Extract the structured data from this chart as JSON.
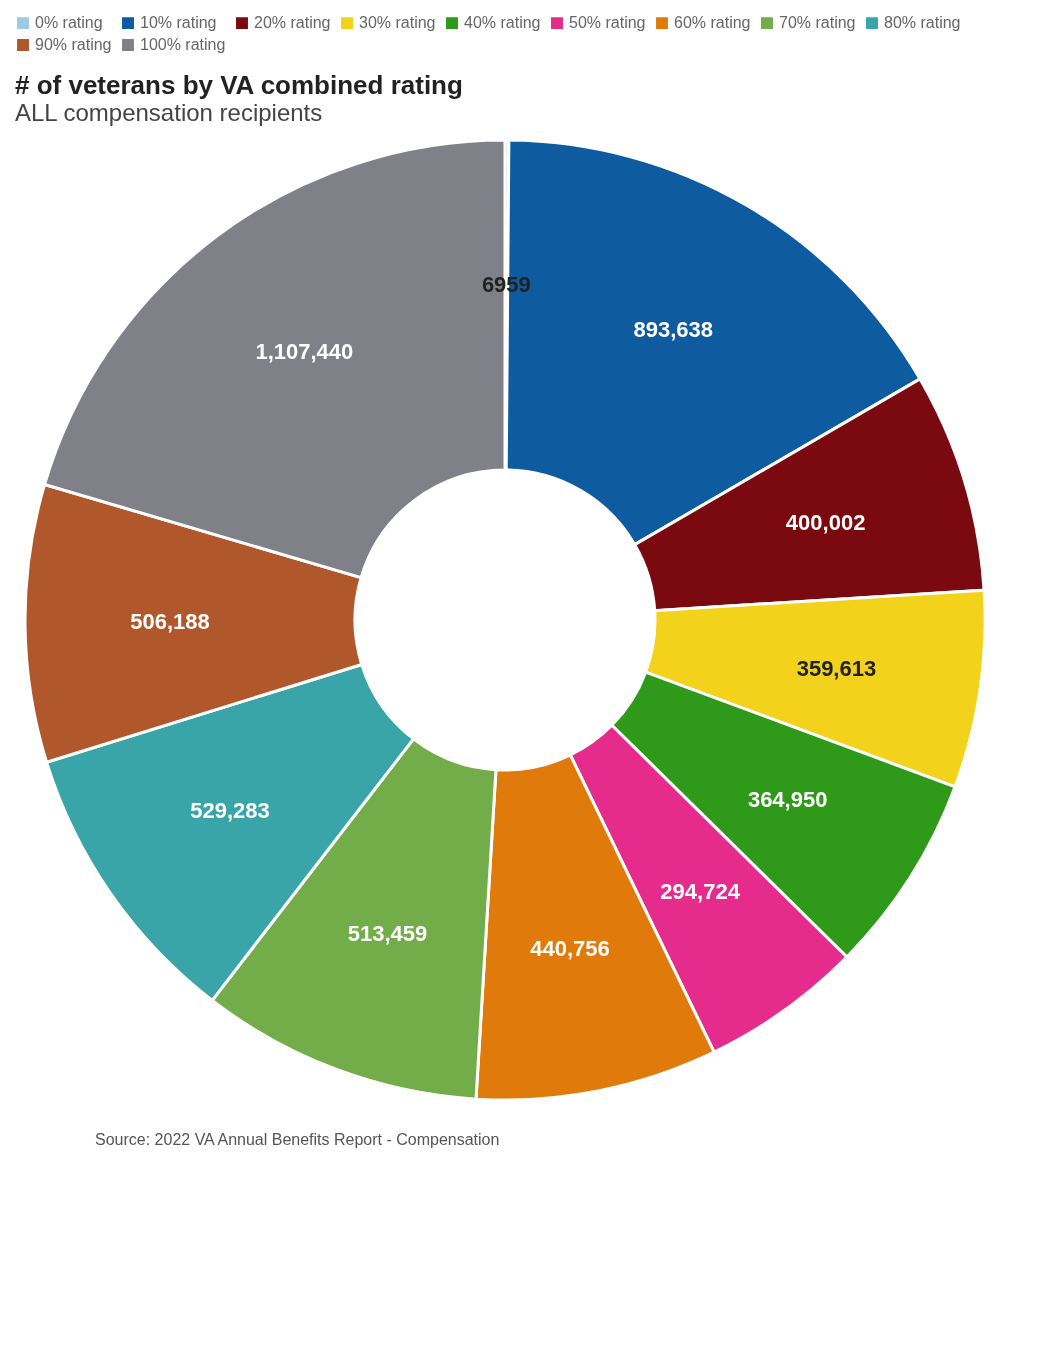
{
  "chart_data": {
    "type": "donut",
    "title": "# of veterans by VA combined rating",
    "subtitle": "ALL compensation recipients",
    "categories": [
      "0% rating",
      "10% rating",
      "20% rating",
      "30% rating",
      "40% rating",
      "50% rating",
      "60% rating",
      "70% rating",
      "80% rating",
      "90% rating",
      "100% rating"
    ],
    "values": [
      6959,
      893638,
      400002,
      359613,
      364950,
      294724,
      440756,
      513459,
      529283,
      506188,
      1107440
    ],
    "value_labels": [
      "6959",
      "893,638",
      "400,002",
      "359,613",
      "364,950",
      "294,724",
      "440,756",
      "513,459",
      "529,283",
      "506,188",
      "1,107,440"
    ],
    "colors": [
      "#9ecae1",
      "#0f5ba0",
      "#7b0a10",
      "#f2d21a",
      "#2f9a1a",
      "#e52b8c",
      "#e07b0b",
      "#72ad4a",
      "#3aa5a8",
      "#b0582b",
      "#808088"
    ],
    "legend": "top left",
    "annotations": [
      "Source: 2022 VA Annual Benefits Report - Compensation"
    ]
  }
}
